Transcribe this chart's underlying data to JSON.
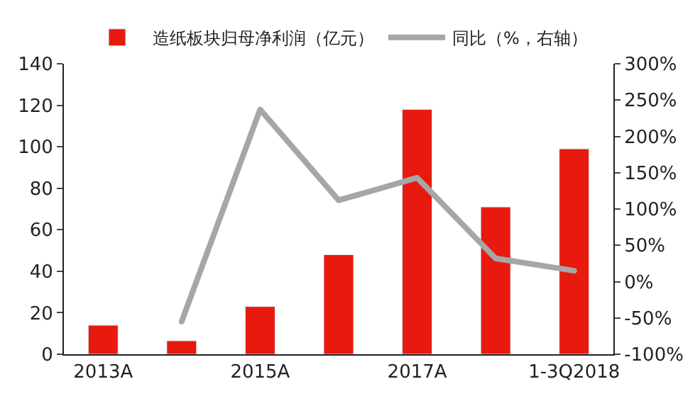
{
  "chart_data": {
    "type": "bar",
    "categories": [
      "2013A",
      null,
      "2015A",
      null,
      "2017A",
      null,
      "1-3Q2018"
    ],
    "series": [
      {
        "name": "造纸板块归母净利润（亿元）",
        "color": "#e8190f",
        "values": [
          14,
          6.5,
          23,
          48,
          118,
          71,
          99
        ]
      },
      {
        "name": "同比（%，右轴）",
        "type": "line",
        "axis": "y2",
        "color": "#a6a6a6",
        "values": [
          null,
          -55,
          237,
          112,
          143,
          32,
          15
        ]
      }
    ],
    "ylim": [
      0,
      140
    ],
    "yticks": [
      0,
      20,
      40,
      60,
      80,
      100,
      120,
      140
    ],
    "y2lim": [
      -100,
      300
    ],
    "y2ticks": [
      {
        "value": -100,
        "label": "-100%"
      },
      {
        "value": -50,
        "label": "-50%"
      },
      {
        "value": 0,
        "label": "0%"
      },
      {
        "value": 50,
        "label": "50%"
      },
      {
        "value": 100,
        "label": "100%"
      },
      {
        "value": 150,
        "label": "150%"
      },
      {
        "value": 200,
        "label": "200%"
      },
      {
        "value": 250,
        "label": "250%"
      },
      {
        "value": 300,
        "label": "300%"
      }
    ],
    "legend": "top",
    "grid": false,
    "marker": "none",
    "line_style": "solid"
  }
}
